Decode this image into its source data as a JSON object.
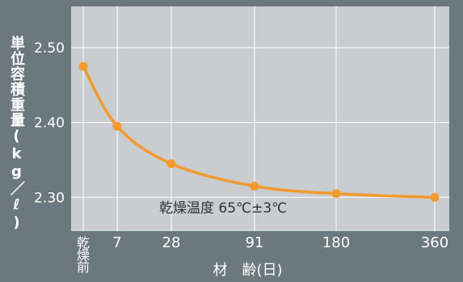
{
  "chart_data": {
    "type": "line",
    "x": [
      0,
      7,
      28,
      91,
      180,
      360
    ],
    "xticklabels": [
      "乾燥前",
      "7",
      "28",
      "91",
      "180",
      "360"
    ],
    "y": [
      2.475,
      2.395,
      2.345,
      2.315,
      2.305,
      2.3
    ],
    "ylim": [
      2.255,
      2.555
    ],
    "yticks": [
      2.3,
      2.4,
      2.5
    ],
    "yticklabels": [
      "2.30",
      "2.40",
      "2.50"
    ],
    "xlabel": "材　齢(日)",
    "ylabel": "単位容積重量(kg／ℓ)",
    "annotation": "乾燥温度 65℃±3℃",
    "grid": true,
    "colors": {
      "plot_bg": "#c9cdcf",
      "line": "#f29a2e",
      "grid": "#ffffff",
      "page_bg": "#6b787e",
      "text": "#ffffff",
      "annotation_text": "#333333"
    }
  }
}
